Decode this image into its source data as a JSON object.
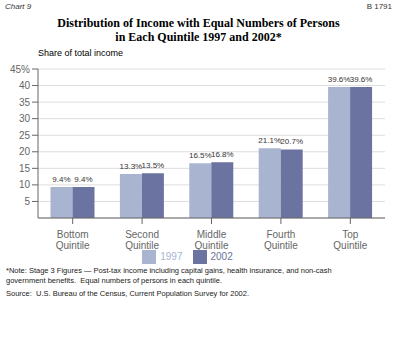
{
  "chart_data": {
    "type": "bar",
    "title": "Distribution of Income with Equal Numbers of Persons\nin Each Quintile 1997 and 2002*",
    "ylabel": "Share of total income",
    "categories": [
      "Bottom\nQuintile",
      "Second\nQuintile",
      "Middle\nQuintile",
      "Fourth\nQuintile",
      "Top\nQuintile"
    ],
    "series": [
      {
        "name": "1997",
        "color": "#a8b4d0",
        "values": [
          9.4,
          13.3,
          16.5,
          21.1,
          39.6
        ],
        "value_labels": [
          "9.4%",
          "13.3%",
          "16.5%",
          "21.1%",
          "39.6%"
        ]
      },
      {
        "name": "2002",
        "color": "#6b73a0",
        "values": [
          9.4,
          13.5,
          16.8,
          20.7,
          39.6
        ],
        "value_labels": [
          "9.4%",
          "13.5%",
          "16.8%",
          "20.7%",
          "39.6%"
        ]
      }
    ],
    "ylim": [
      0,
      45
    ],
    "yticks": [
      5,
      10,
      15,
      20,
      25,
      30,
      35,
      40,
      {
        "value": 45,
        "label": "45%"
      }
    ],
    "grid": true,
    "legend": "bottom",
    "data_labels": true,
    "annotations": [
      "Chart 9",
      "B 1791",
      "*Note: Stage 3 Figures — Post-tax income including capital gains, health insurance, and non-cash\ngovernment benefits.  Equal numbers of persons in each quintile.",
      "Source:  U.S. Bureau of the Census, Current Population Survey for 2002."
    ]
  }
}
